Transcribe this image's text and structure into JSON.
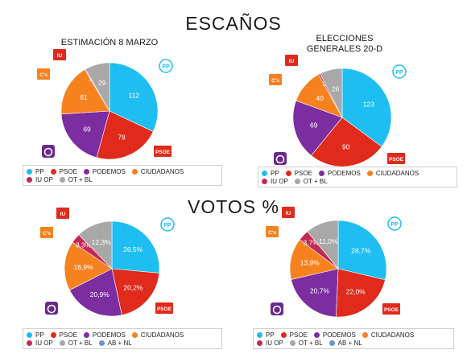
{
  "titles": {
    "escanos": "ESCAÑOS",
    "votos": "VOTOS %"
  },
  "logos": {
    "pp": "PP",
    "psoe": "PSOE",
    "cs": "C's",
    "iu": "IU",
    "podemos": "podemos-logo"
  },
  "colors": {
    "PP": "#1fbef2",
    "PSOE": "#e02a1b",
    "PODEMOS": "#7c2da0",
    "CIUDADANOS": "#f5821f",
    "IU OP": "#c22a55",
    "OT + BL": "#a8a8a8",
    "AB + NL": "#6f8fd6"
  },
  "chart_data": [
    {
      "type": "pie",
      "title": "ESTIMACIÓN 8 MARZO",
      "categories": [
        "PP",
        "PSOE",
        "PODEMOS",
        "CIUDADANOS",
        "IU OP",
        "OT + BL"
      ],
      "values": [
        112,
        78,
        69,
        61,
        1,
        29
      ],
      "labels": [
        "112",
        "78",
        "69",
        "61",
        "1",
        "29"
      ],
      "legend": [
        "PP",
        "PSOE",
        "PODEMOS",
        "CIUDADANOS",
        "IU OP",
        "OT + BL"
      ],
      "legend_position": "bottom"
    },
    {
      "type": "pie",
      "title": "ELECCIONES GENERALES 20-D",
      "categories": [
        "PP",
        "PSOE",
        "PODEMOS",
        "CIUDADANOS",
        "IU OP",
        "OT + BL"
      ],
      "values": [
        123,
        90,
        69,
        40,
        2,
        26
      ],
      "labels": [
        "123",
        "90",
        "69",
        "40",
        "2",
        "26"
      ],
      "legend": [
        "PP",
        "PSOE",
        "PODEMOS",
        "CIUDADANOS",
        "IU OP",
        "OT + BL"
      ],
      "legend_position": "bottom"
    },
    {
      "type": "pie",
      "title": "",
      "categories": [
        "PP",
        "PSOE",
        "PODEMOS",
        "CIUDADANOS",
        "IU OP",
        "OT + BL"
      ],
      "values": [
        26.5,
        20.2,
        20.9,
        16.9,
        3.3,
        12.3
      ],
      "labels": [
        "26,5%",
        "20,2%",
        "20,9%",
        "16,9%",
        "3,3%",
        "12,3%"
      ],
      "legend": [
        "PP",
        "PSOE",
        "PODEMOS",
        "CIUDADANOS",
        "IU OP",
        "OT + BL",
        "AB + NL"
      ],
      "legend_position": "bottom"
    },
    {
      "type": "pie",
      "title": "",
      "categories": [
        "PP",
        "PSOE",
        "PODEMOS",
        "CIUDADANOS",
        "IU OP",
        "OT + BL"
      ],
      "values": [
        28.7,
        22.0,
        20.7,
        13.9,
        3.7,
        11.0
      ],
      "labels": [
        "28,7%",
        "22,0%",
        "20,7%",
        "13,9%",
        "3,7%",
        "11,0%"
      ],
      "legend": [
        "PP",
        "PSOE",
        "PODEMOS",
        "CIUDADANOS",
        "IU OP",
        "OT + BL",
        "AB + NL"
      ],
      "legend_position": "bottom"
    }
  ]
}
